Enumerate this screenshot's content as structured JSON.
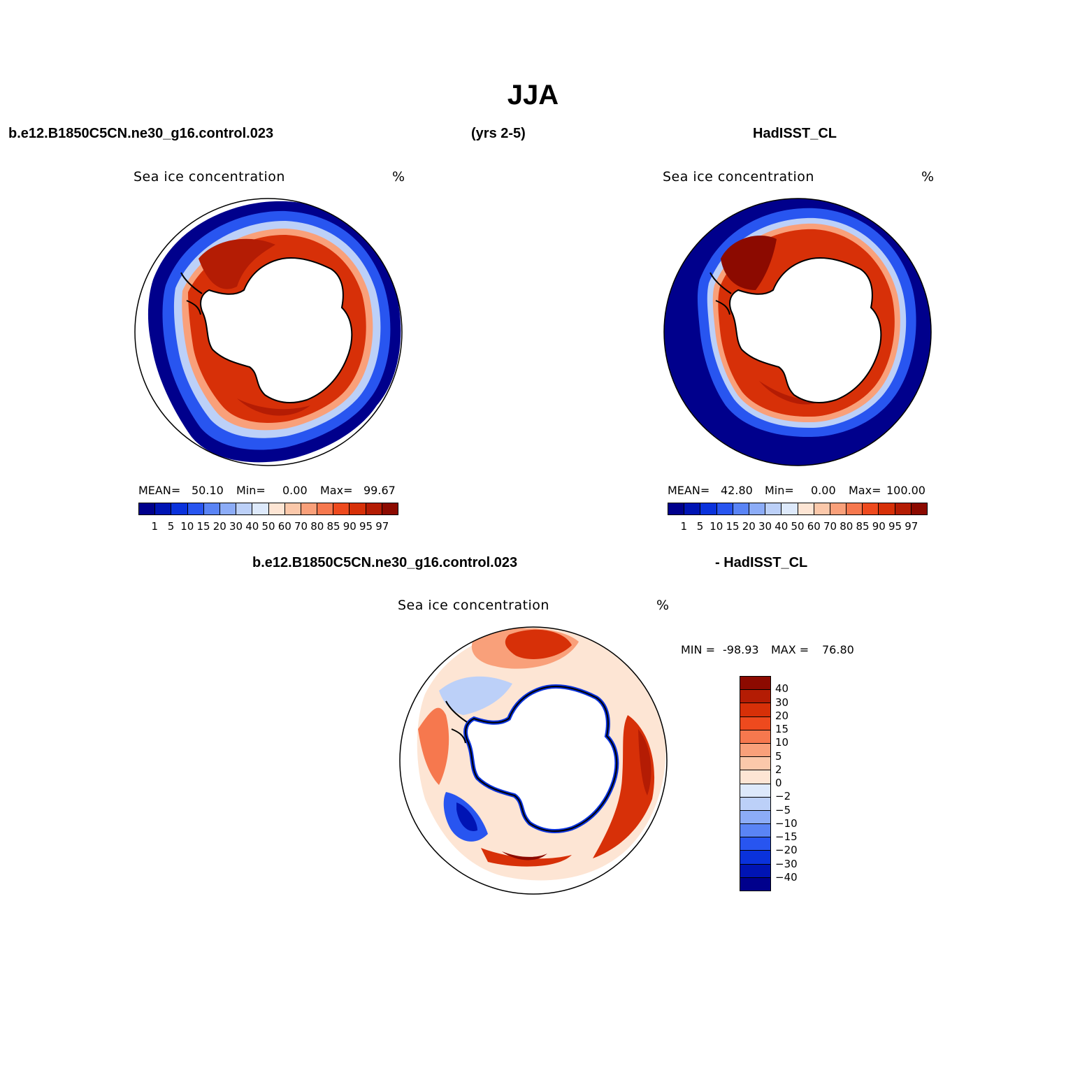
{
  "figure": {
    "title": "JJA",
    "case_name": "b.e12.B1850C5CN.ne30_g16.control.023",
    "years": "(yrs 2-5)",
    "obs_name": "HadISST_CL",
    "diff_case_name": "b.e12.B1850C5CN.ne30_g16.control.023",
    "diff_obs_name": "- HadISST_CL"
  },
  "panels": {
    "model": {
      "title": "Sea ice concentration",
      "units": "%",
      "mean_label": "MEAN=",
      "mean_value": "50.10",
      "min_label": "Min=",
      "min_value": "0.00",
      "max_label": "Max=",
      "max_value": "99.67"
    },
    "obs": {
      "title": "Sea ice concentration",
      "units": "%",
      "mean_label": "MEAN=",
      "mean_value": "42.80",
      "min_label": "Min=",
      "min_value": "0.00",
      "max_label": "Max=",
      "max_value": "100.00"
    },
    "diff": {
      "title": "Sea ice concentration",
      "units": "%",
      "min_label": "MIN =",
      "min_value": "-98.93",
      "max_label": "MAX =",
      "max_value": "76.80"
    }
  },
  "colorbar_abs": {
    "labels": [
      "1",
      "5",
      "10",
      "15",
      "20",
      "30",
      "40",
      "50",
      "60",
      "70",
      "80",
      "85",
      "90",
      "95",
      "97"
    ],
    "colors": [
      "#00008c",
      "#0014b4",
      "#0a32dc",
      "#2855f0",
      "#5a84f5",
      "#8cacf7",
      "#bcd0f8",
      "#dde9fb",
      "#fde5d4",
      "#fbc8aa",
      "#f9a07a",
      "#f6784e",
      "#ee4a1e",
      "#d73008",
      "#b41c04",
      "#8c0a00"
    ]
  },
  "colorbar_diff": {
    "labels": [
      "40",
      "30",
      "20",
      "15",
      "10",
      "5",
      "2",
      "0",
      "−2",
      "−5",
      "−10",
      "−15",
      "−20",
      "−30",
      "−40"
    ],
    "colors": [
      "#8c0a00",
      "#b41c04",
      "#d73008",
      "#ee4a1e",
      "#f6784e",
      "#f9a07a",
      "#fbc8aa",
      "#fde5d4",
      "#dde9fb",
      "#bcd0f8",
      "#8cacf7",
      "#5a84f5",
      "#2855f0",
      "#0a32dc",
      "#0014b4",
      "#00008c"
    ]
  }
}
